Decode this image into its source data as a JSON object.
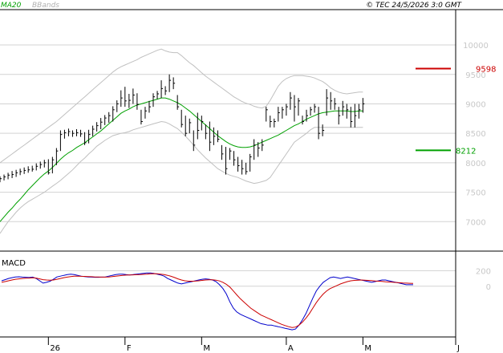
{
  "header": {
    "legend_ma": "MA20",
    "legend_bb": "BBands",
    "copyright": "© TEC 24/5/2026 3:0 GMT"
  },
  "macd_label": "MACD",
  "levels": {
    "resistance": "9598",
    "support": "8212"
  },
  "colors": {
    "price": "#000000",
    "ma": "#00a000",
    "bbands": "#c0c0c0",
    "macd_line": "#0000cc",
    "signal_line": "#cc0000",
    "resistance": "#cc0000",
    "support": "#00a000",
    "grid": "#d3d3d3"
  },
  "chart_data": [
    {
      "type": "line",
      "panel": "price",
      "ylim": [
        6500,
        10600
      ],
      "yticks": [
        "7000",
        "7500",
        "8000",
        "8500",
        "9000",
        "9500",
        "10000"
      ],
      "xlabels": [
        "26",
        "F",
        "M",
        "A",
        "M",
        "J"
      ],
      "x_range": [
        0,
        113
      ],
      "xlabel_positions": [
        12,
        31,
        50,
        71,
        90,
        113
      ],
      "price_bars": [
        [
          7770,
          7670,
          7730
        ],
        [
          7800,
          7700,
          7760
        ],
        [
          7830,
          7720,
          7790
        ],
        [
          7860,
          7740,
          7800
        ],
        [
          7880,
          7760,
          7830
        ],
        [
          7900,
          7790,
          7850
        ],
        [
          7920,
          7810,
          7870
        ],
        [
          7940,
          7830,
          7880
        ],
        [
          7950,
          7850,
          7890
        ],
        [
          7990,
          7870,
          7940
        ],
        [
          8020,
          7900,
          7970
        ],
        [
          8050,
          7920,
          8000
        ],
        [
          8060,
          7800,
          7830
        ],
        [
          8100,
          7820,
          8050
        ],
        [
          8250,
          7960,
          8200
        ],
        [
          8550,
          8200,
          8480
        ],
        [
          8560,
          8410,
          8510
        ],
        [
          8580,
          8450,
          8530
        ],
        [
          8550,
          8440,
          8500
        ],
        [
          8570,
          8450,
          8510
        ],
        [
          8560,
          8440,
          8490
        ],
        [
          8520,
          8300,
          8340
        ],
        [
          8560,
          8330,
          8480
        ],
        [
          8630,
          8450,
          8570
        ],
        [
          8690,
          8530,
          8630
        ],
        [
          8760,
          8570,
          8690
        ],
        [
          8810,
          8640,
          8760
        ],
        [
          8860,
          8680,
          8800
        ],
        [
          8960,
          8700,
          8900
        ],
        [
          9060,
          8860,
          9000
        ],
        [
          9230,
          8950,
          9100
        ],
        [
          9290,
          8950,
          9050
        ],
        [
          9170,
          8930,
          9060
        ],
        [
          9260,
          9000,
          9150
        ],
        [
          9180,
          8900,
          8990
        ],
        [
          8900,
          8650,
          8700
        ],
        [
          8950,
          8750,
          8880
        ],
        [
          9050,
          8850,
          8950
        ],
        [
          9180,
          8950,
          9120
        ],
        [
          9220,
          9080,
          9170
        ],
        [
          9400,
          9100,
          9260
        ],
        [
          9300,
          9150,
          9220
        ],
        [
          9500,
          9200,
          9400
        ],
        [
          9450,
          9250,
          9350
        ],
        [
          9150,
          8900,
          8950
        ],
        [
          8900,
          8600,
          8650
        ],
        [
          8800,
          8450,
          8500
        ],
        [
          8750,
          8500,
          8680
        ],
        [
          8550,
          8200,
          8300
        ],
        [
          8850,
          8400,
          8550
        ],
        [
          8800,
          8550,
          8700
        ],
        [
          8650,
          8400,
          8500
        ],
        [
          8700,
          8200,
          8350
        ],
        [
          8600,
          8300,
          8450
        ],
        [
          8550,
          8350,
          8400
        ],
        [
          8300,
          8050,
          8150
        ],
        [
          8270,
          7800,
          7900
        ],
        [
          8250,
          8050,
          8200
        ],
        [
          8200,
          7950,
          8050
        ],
        [
          8100,
          7850,
          7950
        ],
        [
          8050,
          7800,
          7900
        ],
        [
          8000,
          7800,
          7850
        ],
        [
          8150,
          7850,
          8100
        ],
        [
          8400,
          8050,
          8300
        ],
        [
          8350,
          8100,
          8250
        ],
        [
          8400,
          8200,
          8300
        ],
        [
          8950,
          8700,
          8900
        ],
        [
          8800,
          8600,
          8700
        ],
        [
          8750,
          8600,
          8700
        ],
        [
          8950,
          8700,
          8850
        ],
        [
          8950,
          8750,
          8900
        ],
        [
          9000,
          8800,
          8950
        ],
        [
          9200,
          8900,
          9100
        ],
        [
          9150,
          8700,
          8950
        ],
        [
          9100,
          8800,
          9050
        ],
        [
          8800,
          8650,
          8700
        ],
        [
          8900,
          8700,
          8800
        ],
        [
          8950,
          8800,
          8900
        ],
        [
          9000,
          8850,
          8950
        ],
        [
          8950,
          8400,
          8500
        ],
        [
          8650,
          8450,
          8550
        ],
        [
          9250,
          8800,
          9100
        ],
        [
          9200,
          8900,
          9050
        ],
        [
          9100,
          8900,
          9000
        ],
        [
          8950,
          8650,
          8800
        ],
        [
          9050,
          8800,
          8950
        ],
        [
          9000,
          8750,
          8900
        ],
        [
          8950,
          8600,
          8700
        ],
        [
          9000,
          8600,
          8800
        ],
        [
          9000,
          8750,
          8900
        ],
        [
          9100,
          8850,
          9000
        ]
      ],
      "ma20": [
        7000,
        7080,
        7160,
        7230,
        7310,
        7380,
        7460,
        7540,
        7610,
        7680,
        7750,
        7810,
        7860,
        7920,
        7990,
        8060,
        8120,
        8170,
        8210,
        8260,
        8300,
        8340,
        8390,
        8440,
        8490,
        8540,
        8600,
        8660,
        8720,
        8780,
        8840,
        8880,
        8910,
        8950,
        8980,
        9000,
        9020,
        9040,
        9060,
        9080,
        9100,
        9100,
        9080,
        9050,
        9020,
        8980,
        8930,
        8880,
        8820,
        8760,
        8700,
        8640,
        8580,
        8520,
        8460,
        8410,
        8360,
        8320,
        8290,
        8270,
        8260,
        8260,
        8270,
        8290,
        8320,
        8350,
        8380,
        8410,
        8440,
        8470,
        8510,
        8550,
        8590,
        8630,
        8660,
        8700,
        8740,
        8770,
        8800,
        8830,
        8850,
        8860,
        8870,
        8880,
        8880,
        8880,
        8880,
        8870,
        8870,
        8880,
        8880
      ],
      "bb_upper": [
        8000,
        8050,
        8100,
        8150,
        8200,
        8250,
        8300,
        8350,
        8400,
        8450,
        8500,
        8550,
        8600,
        8650,
        8700,
        8760,
        8820,
        8880,
        8940,
        9000,
        9060,
        9120,
        9180,
        9240,
        9300,
        9360,
        9420,
        9480,
        9540,
        9590,
        9630,
        9660,
        9690,
        9720,
        9750,
        9790,
        9820,
        9850,
        9880,
        9910,
        9930,
        9900,
        9880,
        9870,
        9870,
        9820,
        9760,
        9700,
        9650,
        9590,
        9530,
        9470,
        9420,
        9370,
        9320,
        9270,
        9220,
        9170,
        9120,
        9080,
        9040,
        9010,
        8990,
        8960,
        8940,
        8930,
        8960,
        9060,
        9180,
        9300,
        9380,
        9430,
        9460,
        9480,
        9480,
        9480,
        9470,
        9460,
        9440,
        9410,
        9380,
        9330,
        9270,
        9230,
        9200,
        9180,
        9170,
        9180,
        9190,
        9200,
        9200
      ],
      "bb_lower": [
        6800,
        6900,
        7000,
        7080,
        7160,
        7230,
        7290,
        7340,
        7380,
        7420,
        7460,
        7500,
        7550,
        7600,
        7650,
        7700,
        7760,
        7820,
        7880,
        7950,
        8020,
        8080,
        8150,
        8210,
        8280,
        8330,
        8380,
        8420,
        8460,
        8480,
        8500,
        8510,
        8530,
        8560,
        8580,
        8600,
        8620,
        8640,
        8660,
        8680,
        8700,
        8690,
        8660,
        8620,
        8580,
        8520,
        8450,
        8380,
        8300,
        8220,
        8150,
        8080,
        8020,
        7960,
        7900,
        7860,
        7820,
        7790,
        7770,
        7750,
        7720,
        7690,
        7670,
        7650,
        7660,
        7680,
        7700,
        7750,
        7850,
        7950,
        8050,
        8150,
        8250,
        8350,
        8400,
        8450,
        8500,
        8560,
        8600,
        8600,
        8600,
        8600,
        8600,
        8600,
        8600,
        8600,
        8600,
        8600,
        8600,
        8600,
        8600
      ],
      "resistance": 9598,
      "support": 8212
    },
    {
      "type": "line",
      "panel": "macd",
      "ylim": [
        -600,
        400
      ],
      "yticks": [
        "200",
        "0"
      ],
      "series": [
        {
          "name": "MACD",
          "values": [
            70,
            85,
            100,
            110,
            120,
            122,
            118,
            115,
            112,
            118,
            100,
            70,
            40,
            50,
            65,
            90,
            120,
            130,
            140,
            150,
            155,
            150,
            140,
            130,
            125,
            120,
            118,
            115,
            115,
            118,
            120,
            130,
            140,
            150,
            155,
            155,
            150,
            145,
            150,
            155,
            160,
            165,
            170,
            170,
            165,
            155,
            145,
            130,
            100,
            80,
            60,
            40,
            30,
            40,
            50,
            60,
            70,
            80,
            90,
            95,
            90,
            80,
            60,
            20,
            -30,
            -100,
            -200,
            -280,
            -330,
            -360,
            -380,
            -400,
            -420,
            -440,
            -460,
            -480,
            -490,
            -500,
            -500,
            -510,
            -520,
            -530,
            -540,
            -550,
            -560,
            -550,
            -500,
            -430,
            -350,
            -250,
            -150,
            -60,
            0,
            50,
            80,
            110,
            120,
            110,
            100,
            110,
            120,
            110,
            100,
            90,
            80,
            70,
            60,
            50,
            60,
            70,
            80,
            80,
            70,
            60,
            50,
            40,
            30,
            20,
            20,
            20
          ]
        },
        {
          "name": "Signal",
          "values": [
            50,
            60,
            70,
            80,
            90,
            95,
            100,
            103,
            105,
            108,
            105,
            95,
            85,
            80,
            78,
            80,
            90,
            100,
            110,
            118,
            125,
            130,
            130,
            128,
            127,
            125,
            123,
            120,
            119,
            118,
            118,
            120,
            125,
            130,
            135,
            140,
            143,
            145,
            146,
            148,
            150,
            153,
            156,
            160,
            162,
            160,
            156,
            150,
            140,
            128,
            112,
            95,
            80,
            70,
            65,
            65,
            66,
            70,
            75,
            80,
            82,
            82,
            78,
            68,
            50,
            25,
            -10,
            -60,
            -110,
            -160,
            -200,
            -240,
            -280,
            -310,
            -340,
            -370,
            -390,
            -410,
            -430,
            -450,
            -470,
            -490,
            -505,
            -520,
            -530,
            -525,
            -500,
            -460,
            -410,
            -350,
            -280,
            -210,
            -150,
            -100,
            -60,
            -30,
            -10,
            10,
            30,
            45,
            60,
            70,
            75,
            78,
            80,
            78,
            75,
            72,
            68,
            65,
            62,
            58,
            55,
            52,
            48,
            45,
            42,
            40,
            38,
            36
          ]
        }
      ]
    }
  ]
}
